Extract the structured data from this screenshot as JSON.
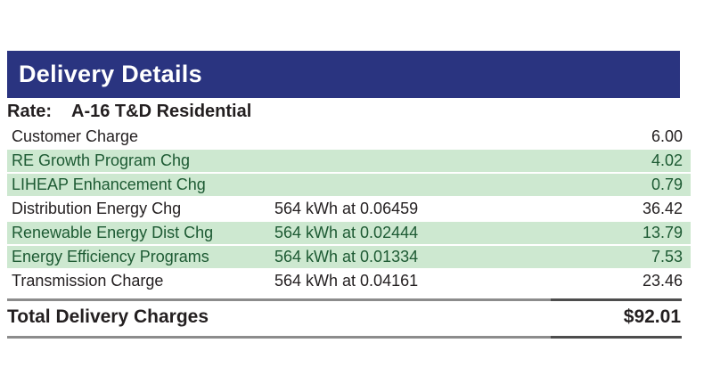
{
  "header": {
    "title": "Delivery Details"
  },
  "rate": {
    "label": "Rate:",
    "value": "A-16 T&D Residential"
  },
  "rows": [
    {
      "label": "Customer Charge",
      "usage": "",
      "amount": "6.00",
      "highlighted": false
    },
    {
      "label": "RE Growth Program Chg",
      "usage": "",
      "amount": "4.02",
      "highlighted": true
    },
    {
      "label": "LIHEAP Enhancement Chg",
      "usage": "",
      "amount": "0.79",
      "highlighted": true
    },
    {
      "label": "Distribution Energy Chg",
      "usage": "564 kWh at 0.06459",
      "amount": "36.42",
      "highlighted": false
    },
    {
      "label": "Renewable Energy Dist Chg",
      "usage": "564 kWh at 0.02444",
      "amount": "13.79",
      "highlighted": true
    },
    {
      "label": "Energy Efficiency Programs",
      "usage": "564 kWh at 0.01334",
      "amount": "7.53",
      "highlighted": true
    },
    {
      "label": "Transmission Charge",
      "usage": "564 kWh at 0.04161",
      "amount": "23.46",
      "highlighted": false
    }
  ],
  "total": {
    "label": "Total Delivery Charges",
    "amount": "$92.01"
  },
  "colors": {
    "header_bg": "#2a3480",
    "header_text": "#ffffff",
    "highlight_bg": "#cde8d0",
    "highlight_text": "#1d5a33",
    "body_text": "#231f20",
    "rule_gray": "#8c8c8c",
    "rule_dark": "#4d4d4d"
  }
}
